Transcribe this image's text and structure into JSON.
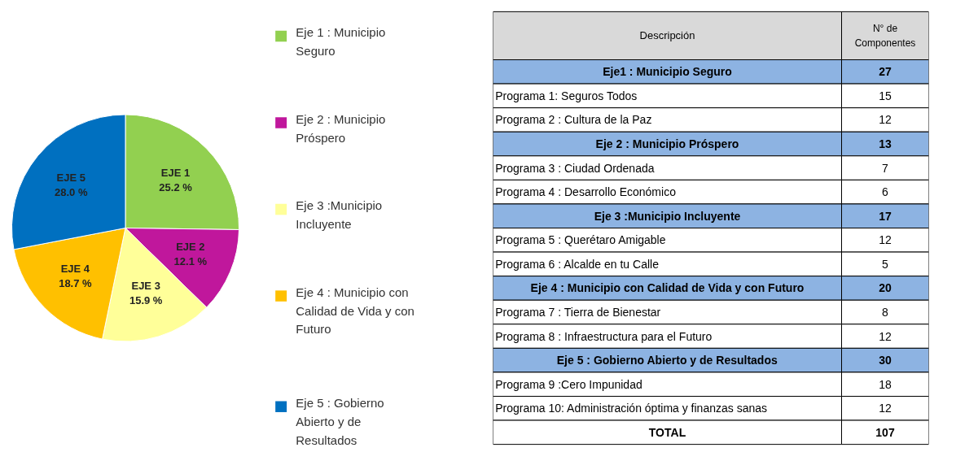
{
  "chart_data": [
    {
      "type": "pie",
      "categories": [
        "Eje 1 : Municipio Seguro",
        "Eje 2 : Municipio Próspero",
        "Eje 3 :Municipio Incluyente",
        "Eje 4 : Municipio con Calidad de Vida y con Futuro",
        "Eje 5 : Gobierno Abierto y de Resultados"
      ],
      "values": [
        25.2,
        12.1,
        15.9,
        18.7,
        28.0
      ],
      "colors": [
        "#92d050",
        "#c0179c",
        "#ffff99",
        "#ffc000",
        "#0070c0"
      ],
      "value_labels": [
        "EJE 1\n25.2 %",
        "EJE 2\n12.1 %",
        "EJE 3\n15.9 %",
        "EJE 4\n18.7 %",
        "EJE 5\n28.0 %"
      ],
      "legend": "right"
    },
    {
      "type": "other",
      "annotations": [
        "Descripción",
        "N° de Componentes"
      ],
      "categories": [
        "Eje1 : Municipio Seguro",
        "Programa 1: Seguros Todos",
        "Programa 2 : Cultura de la Paz",
        "Eje 2 : Municipio Próspero",
        "Programa 3 : Ciudad Ordenada",
        "Programa 4 : Desarrollo Económico",
        "Eje 3 :Municipio Incluyente",
        "Programa 5 : Querétaro Amigable",
        "Programa 6 : Alcalde en tu Calle",
        "Eje 4 : Municipio con Calidad de Vida y con Futuro",
        "Programa 7 : Tierra de Bienestar",
        "Programa 8 : Infraestructura para el Futuro",
        "Eje 5 : Gobierno Abierto y de Resultados",
        "Programa 9 :Cero Impunidad",
        "Programa 10: Administración óptima y finanzas sanas",
        "TOTAL"
      ],
      "values": [
        27,
        15,
        12,
        13,
        7,
        6,
        17,
        12,
        5,
        20,
        8,
        12,
        30,
        18,
        12,
        107
      ],
      "colors": [
        "#8db3e2",
        "#ffffff",
        "#ffffff",
        "#8db3e2",
        "#ffffff",
        "#ffffff",
        "#8db3e2",
        "#ffffff",
        "#ffffff",
        "#8db3e2",
        "#ffffff",
        "#ffffff",
        "#8db3e2",
        "#ffffff",
        "#ffffff",
        "#ffffff"
      ],
      "data_labels": true
    }
  ]
}
